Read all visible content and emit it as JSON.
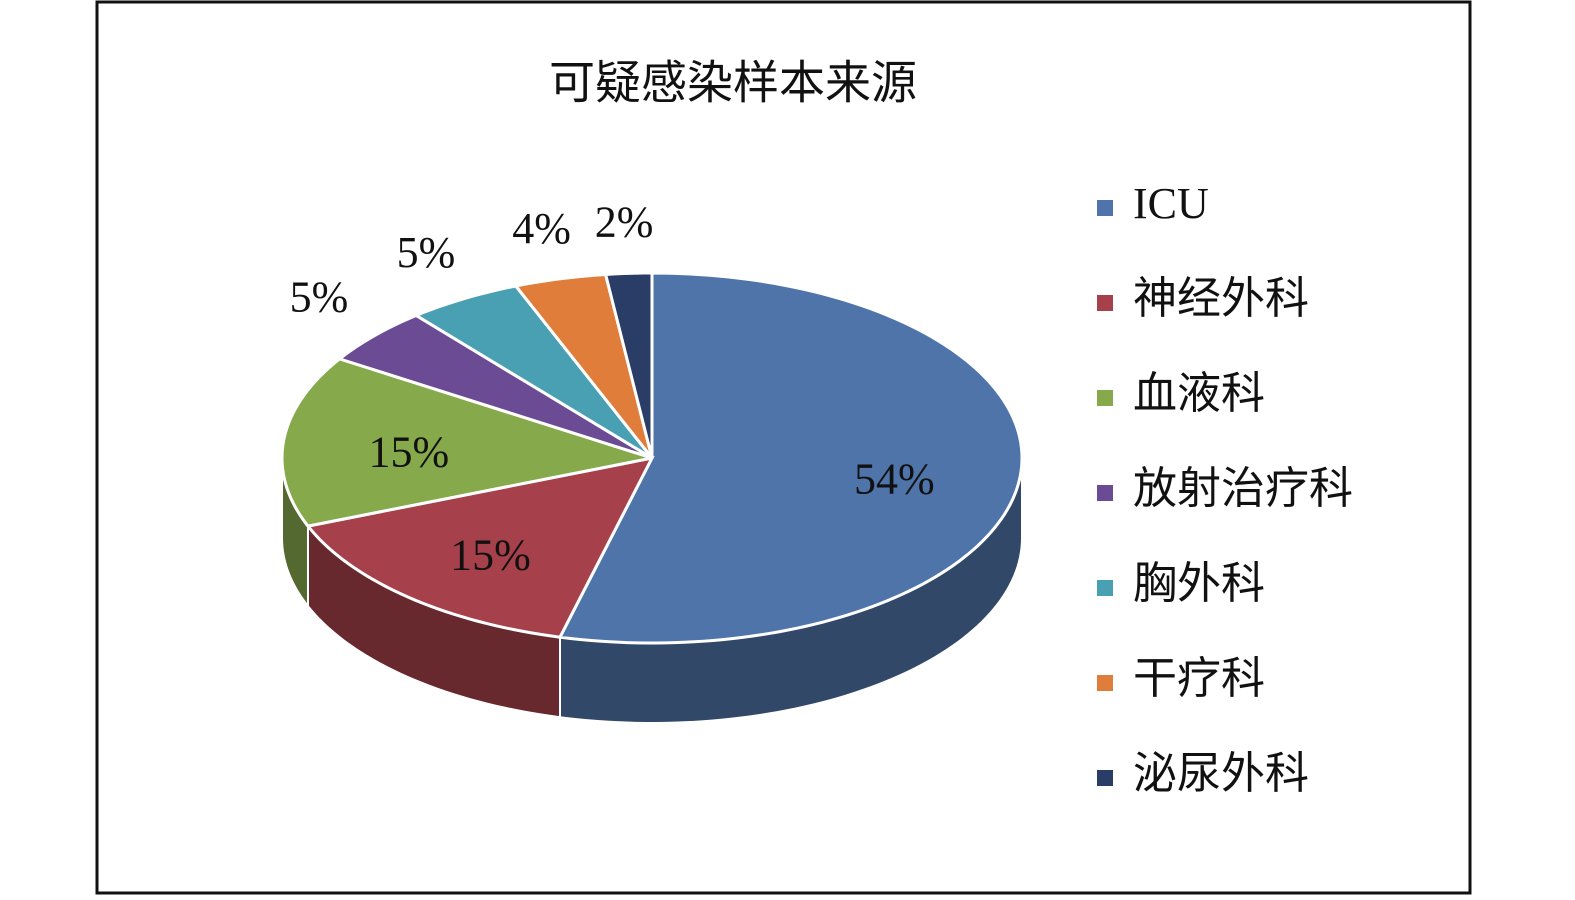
{
  "chart_data": {
    "type": "pie3d",
    "title": "可疑感染样本来源",
    "categories": [
      "ICU",
      "神经外科",
      "血液科",
      "放射治疗科",
      "胸外科",
      "干疗科",
      "泌尿外科"
    ],
    "values": [
      54,
      15,
      15,
      5,
      5,
      4,
      2
    ],
    "value_labels": [
      "54%",
      "15%",
      "15%",
      "5%",
      "5%",
      "4%",
      "2%"
    ],
    "colors": [
      "#4f74aa",
      "#a6404a",
      "#86a94c",
      "#6b4c94",
      "#4aa0b3",
      "#e07d3a",
      "#2a3d66"
    ],
    "legend": "right"
  }
}
